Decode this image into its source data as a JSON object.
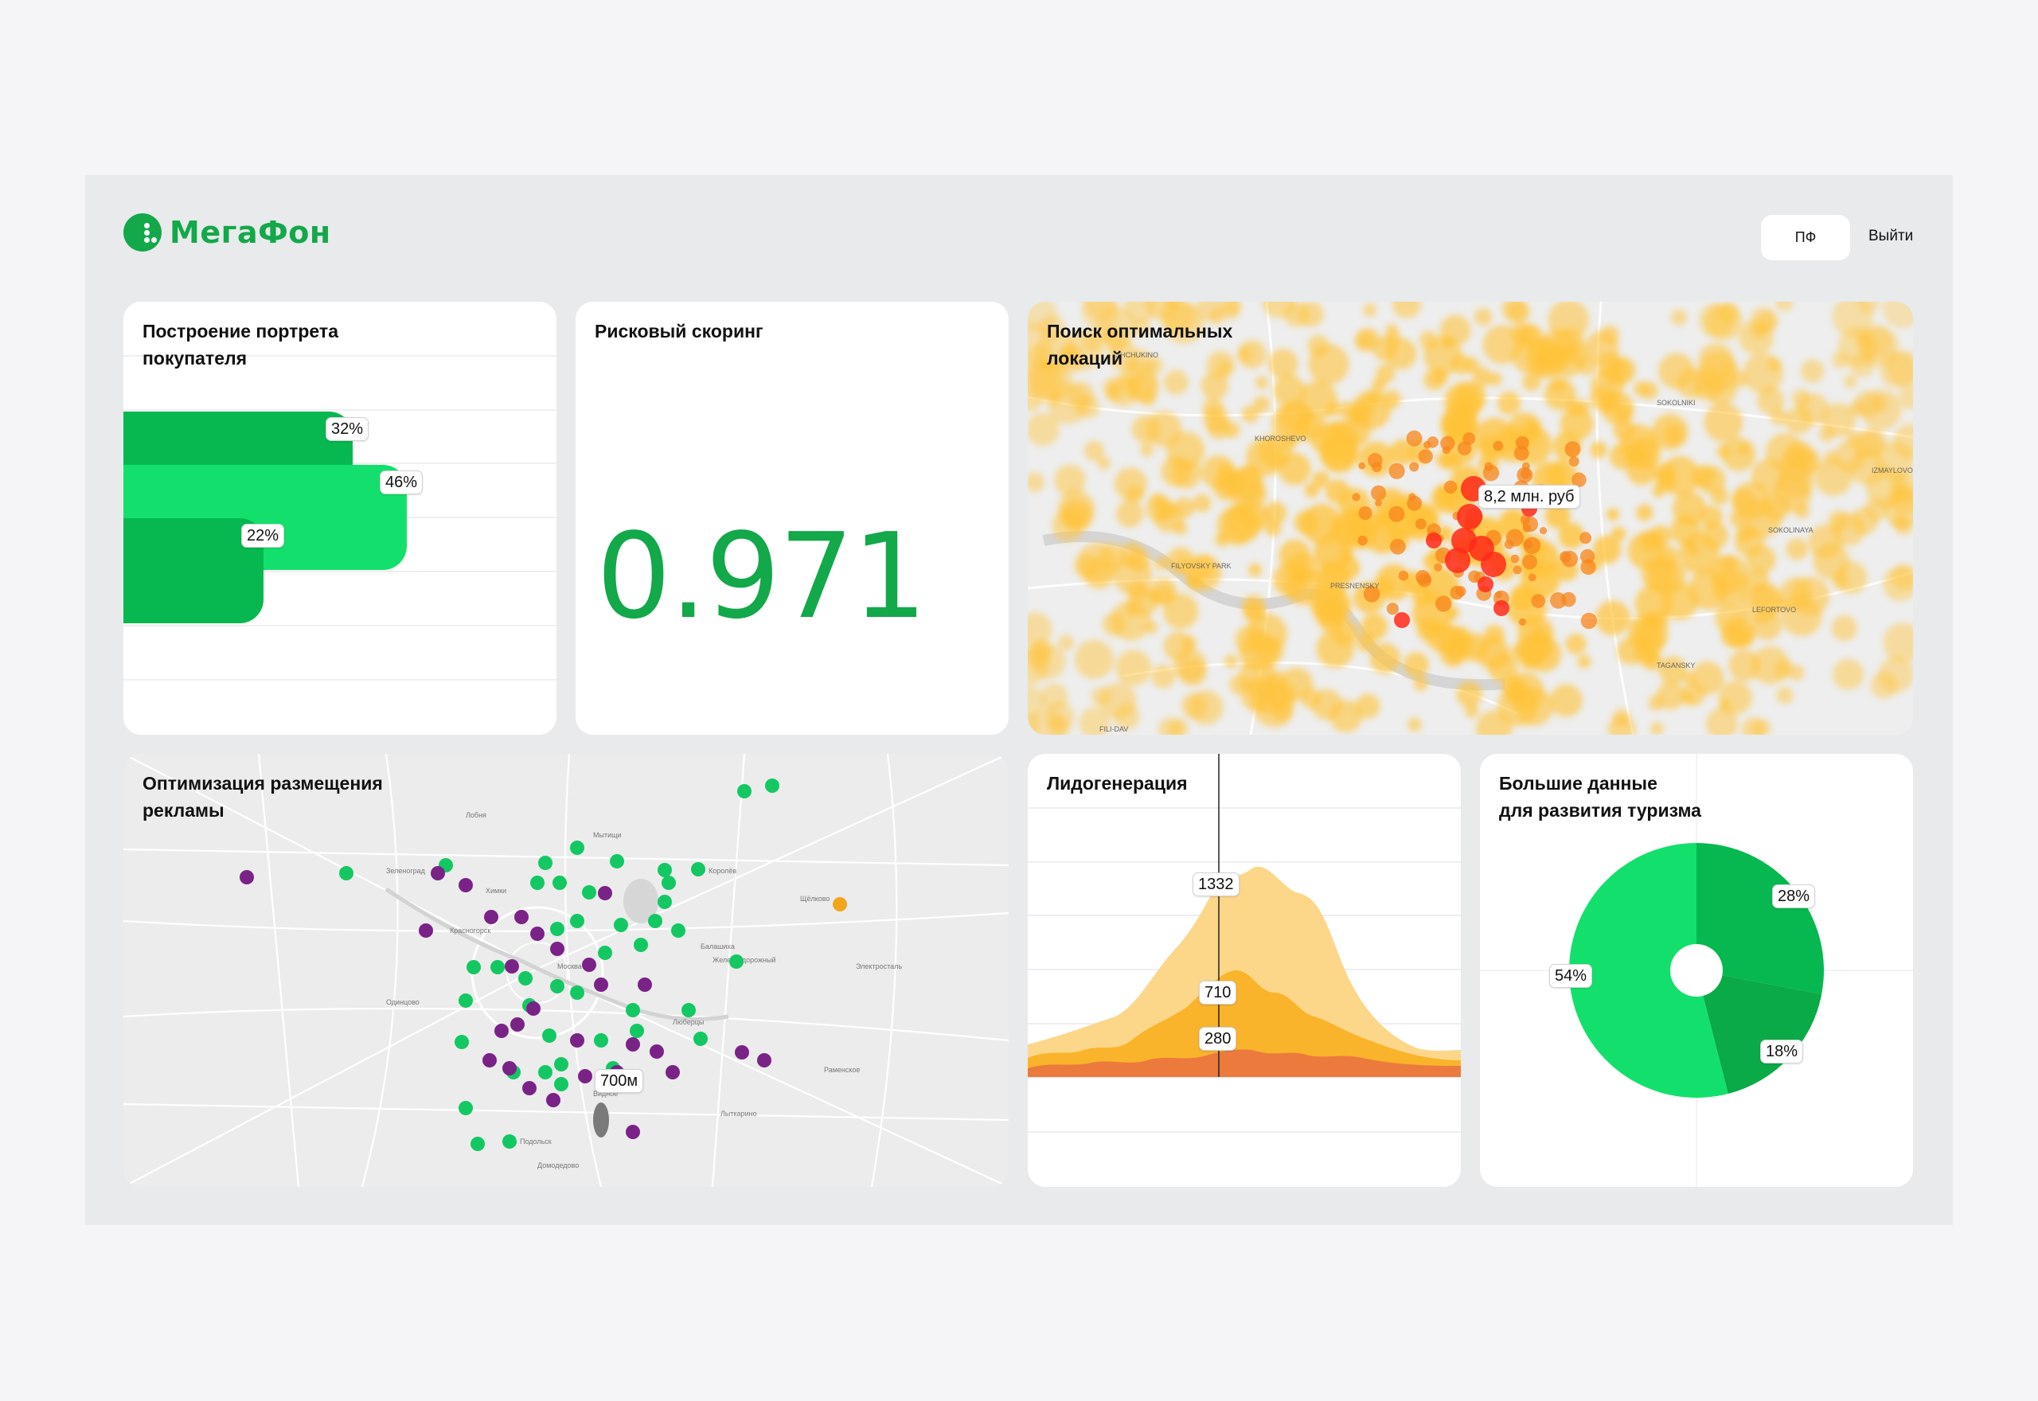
{
  "header": {
    "logo_text": "МегаФон",
    "pf_button": "ПФ",
    "exit_link": "Выйти"
  },
  "colors": {
    "brand_green": "#13a84a",
    "light_green": "#13e06c",
    "mid_green": "#06b84f",
    "purple": "#7a2387",
    "orange": "#f4a51c",
    "heat_red": "#ff2a1a",
    "heat_yellow": "#ffc83a"
  },
  "cards": {
    "portrait": {
      "title": "Построение портрета\nпокупателя",
      "bars": [
        {
          "label": "32%",
          "value": 32
        },
        {
          "label": "46%",
          "value": 46
        },
        {
          "label": "22%",
          "value": 22
        }
      ]
    },
    "risk": {
      "title": "Рисковый скоринг",
      "score": "0.971"
    },
    "locations": {
      "title": "Поиск оптимальных\nлокаций",
      "tooltip": "8,2 млн. руб",
      "map_labels": [
        "SHCHUKINO DISTRICT",
        "KHOROSHEVO DISTRICT",
        "FILYOVSKY PARK DISTRICT Р-Н ФИЛЕВСКИЙ ПАРК",
        "PRESNENSKY DISTRICT",
        "LEFORTOVO DISTRICT",
        "SOKOLINAYA GORA DISTRICT",
        "IZMAYLOVO DISTRICT",
        "SOKOLNIKI DISTRICT",
        "FILI-DAVYDKOVO",
        "TAGANSKY DISTRICT"
      ]
    },
    "ads": {
      "title": "Оптимизация размещения\nрекламы",
      "tooltip": "700м",
      "map_labels": [
        "Москва",
        "Химки",
        "Балашиха",
        "Люберцы",
        "Подольск",
        "Мытищи",
        "Зеленоград",
        "Красногорск",
        "Одинцово",
        "Железнодорожный",
        "Лобня",
        "Щёлково",
        "Королёв",
        "Видное",
        "Домодедово",
        "Электросталь",
        "Раменское",
        "Лыткарино"
      ]
    },
    "leads": {
      "title": "Лидогенерация",
      "labels": [
        "1332",
        "710",
        "280"
      ],
      "chart_data": {
        "type": "area",
        "series": [
          {
            "values": [
              1332
            ]
          },
          {
            "values": [
              710
            ]
          },
          {
            "values": [
              280
            ]
          }
        ]
      }
    },
    "tourism": {
      "title": "Большие данные\nдля развития туризма",
      "chart_data": {
        "type": "pie",
        "slices": [
          {
            "label": "28%",
            "value": 28
          },
          {
            "label": "18%",
            "value": 18
          },
          {
            "label": "54%",
            "value": 54
          }
        ]
      }
    }
  }
}
